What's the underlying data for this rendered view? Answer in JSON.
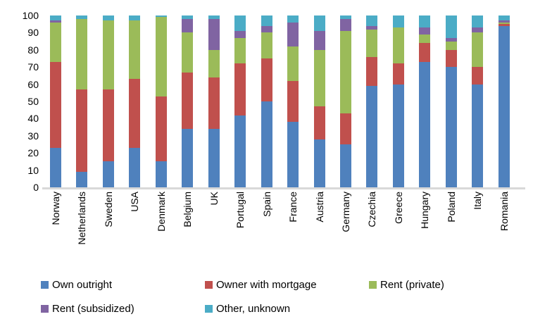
{
  "chart_data": {
    "type": "bar",
    "stacked": true,
    "title": "",
    "xlabel": "",
    "ylabel": "",
    "ylim": [
      0,
      100
    ],
    "yticks": [
      0,
      10,
      20,
      30,
      40,
      50,
      60,
      70,
      80,
      90,
      100
    ],
    "grid": false,
    "legend_position": "bottom",
    "categories": [
      "Norway",
      "Netherlands",
      "Sweden",
      "USA",
      "Denmark",
      "Belgium",
      "UK",
      "Portugal",
      "Spain",
      "France",
      "Austria",
      "Germany",
      "Czechia",
      "Greece",
      "Hungary",
      "Poland",
      "Italy",
      "Romania"
    ],
    "series": [
      {
        "name": "Own outright",
        "color": "#4F81BD",
        "values": [
          23,
          9,
          15,
          23,
          15,
          34,
          34,
          42,
          50,
          38,
          28,
          25,
          59,
          60,
          73,
          70,
          60,
          94
        ]
      },
      {
        "name": "Owner with mortgage",
        "color": "#C0504D",
        "values": [
          50,
          48,
          42,
          40,
          38,
          33,
          30,
          30,
          25,
          24,
          19,
          18,
          17,
          12,
          11,
          10,
          10,
          1
        ]
      },
      {
        "name": "Rent (private)",
        "color": "#9BBB59",
        "values": [
          23,
          41,
          40,
          34,
          46,
          23,
          16,
          15,
          15,
          20,
          33,
          48,
          16,
          21,
          5,
          5,
          20,
          1
        ]
      },
      {
        "name": "Rent (subsidized)",
        "color": "#8064A2",
        "values": [
          1,
          0,
          0,
          0,
          0,
          8,
          18,
          4,
          4,
          14,
          11,
          7,
          2,
          0,
          4,
          2,
          3,
          1
        ]
      },
      {
        "name": "Other, unknown",
        "color": "#4BACC6",
        "values": [
          3,
          2,
          3,
          3,
          1,
          2,
          2,
          9,
          6,
          4,
          9,
          2,
          6,
          7,
          7,
          13,
          7,
          3
        ]
      }
    ]
  },
  "colors": {
    "axis_line": "#d9d9d9",
    "text": "#000000",
    "background": "#ffffff"
  }
}
